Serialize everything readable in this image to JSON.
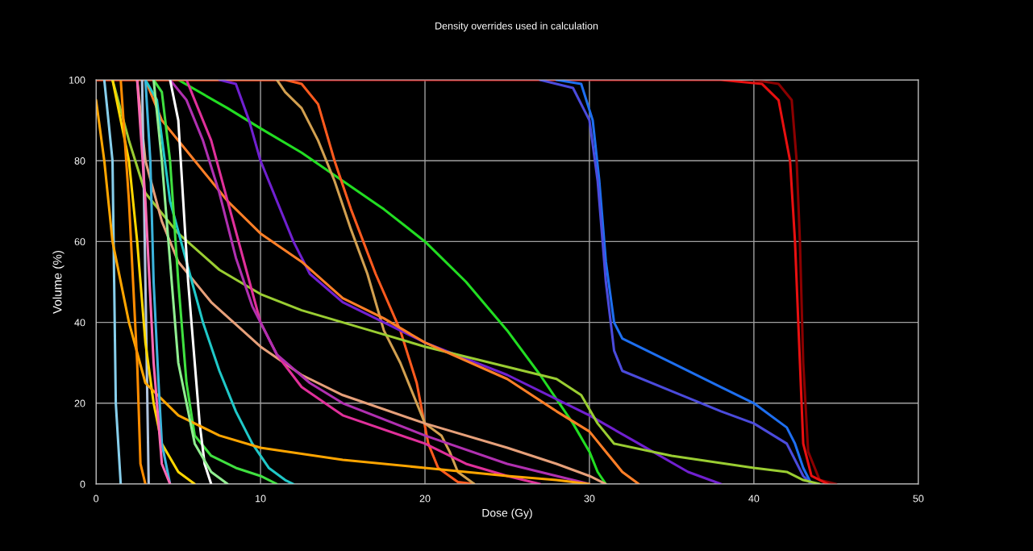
{
  "chart_data": {
    "type": "line",
    "title": "Density overrides used in calculation",
    "xlabel": "Dose (Gy)",
    "ylabel": "Volume (%)",
    "xlim": [
      0,
      50
    ],
    "ylim": [
      0,
      100
    ],
    "xticks": [
      0,
      10,
      20,
      30,
      40,
      50
    ],
    "yticks": [
      0,
      20,
      40,
      60,
      80,
      100
    ],
    "grid": true,
    "series": [
      {
        "color": "#8b0000",
        "x": [
          40,
          41.5,
          42.3,
          42.6,
          42.8,
          43,
          43.3,
          44,
          45
        ],
        "values": [
          100,
          99,
          95,
          80,
          60,
          30,
          8,
          1,
          0
        ]
      },
      {
        "color": "#e81010",
        "x": [
          0,
          38,
          40.5,
          41.5,
          42.2,
          42.5,
          42.8,
          43.0,
          43.5,
          44.5
        ],
        "values": [
          100,
          100,
          99,
          95,
          80,
          60,
          30,
          10,
          2,
          0
        ]
      },
      {
        "color": "#1e6ff0",
        "x": [
          28,
          29.5,
          30.2,
          30.6,
          31.0,
          31.5,
          32,
          35,
          38,
          40,
          42,
          42.5,
          43,
          43.5
        ],
        "values": [
          100,
          99,
          90,
          75,
          55,
          40,
          36,
          30,
          24,
          20,
          14,
          10,
          4,
          0
        ]
      },
      {
        "color": "#4b4bdc",
        "x": [
          27,
          29,
          30,
          30.5,
          31,
          31.5,
          32,
          35,
          38,
          40,
          42,
          42.5,
          43,
          43.5
        ],
        "values": [
          100,
          98,
          90,
          75,
          50,
          33,
          28,
          23,
          18,
          15,
          10,
          6,
          2,
          0
        ]
      },
      {
        "color": "#22dd22",
        "x": [
          5,
          8,
          10,
          12.5,
          15,
          17.5,
          20,
          22.5,
          25,
          27,
          29,
          30,
          30.5,
          31
        ],
        "values": [
          100,
          93,
          88,
          82,
          75,
          68,
          60,
          50,
          38,
          27,
          15,
          8,
          3,
          0
        ]
      },
      {
        "color": "#ff5a1e",
        "x": [
          0,
          11.5,
          12.5,
          13.5,
          14.5,
          15.5,
          17,
          18.5,
          19.5,
          20.2,
          20.8,
          22,
          23
        ],
        "values": [
          100,
          100,
          99,
          94,
          80,
          68,
          52,
          38,
          25,
          10,
          4,
          0.5,
          0
        ]
      },
      {
        "color": "#d2a050",
        "x": [
          11,
          11.5,
          12.5,
          13.5,
          14.5,
          15.5,
          16.5,
          17.5,
          18.5,
          19.5,
          20,
          21,
          21.5,
          22,
          23
        ],
        "values": [
          100,
          97,
          93,
          85,
          75,
          63,
          52,
          38,
          30,
          20,
          15,
          12,
          8,
          3,
          0
        ]
      },
      {
        "color": "#7020d0",
        "x": [
          7.5,
          8.5,
          9.3,
          10,
          11,
          12,
          13,
          15,
          17.5,
          20,
          25,
          30,
          33,
          36,
          38
        ],
        "values": [
          100,
          99,
          90,
          80,
          70,
          60,
          52,
          45,
          40,
          35,
          27,
          17,
          10,
          3,
          0
        ]
      },
      {
        "color": "#9acd32",
        "x": [
          1,
          2,
          3,
          5,
          7.5,
          10,
          12.5,
          15,
          17.5,
          20,
          25,
          28,
          29.5,
          30.5,
          31.5,
          35,
          40,
          42,
          43,
          44
        ],
        "values": [
          100,
          85,
          72,
          62,
          53,
          47,
          43,
          40,
          37,
          34,
          29,
          26,
          22,
          15,
          10,
          7,
          4,
          3,
          1,
          0
        ]
      },
      {
        "color": "#ff7f27",
        "x": [
          3,
          4,
          6,
          8,
          10,
          12.5,
          15,
          17.5,
          20,
          25,
          28,
          30,
          31,
          32,
          33
        ],
        "values": [
          100,
          90,
          80,
          70,
          62,
          55,
          46,
          41,
          35,
          26,
          18,
          13,
          8,
          3,
          0
        ]
      },
      {
        "color": "#e6a07a",
        "x": [
          2.5,
          3,
          4,
          5,
          7,
          10,
          12.5,
          15,
          20,
          25,
          28,
          30,
          31
        ],
        "values": [
          100,
          80,
          65,
          55,
          45,
          34,
          27,
          22,
          15,
          9,
          5,
          2,
          0
        ]
      },
      {
        "color": "#e0309a",
        "x": [
          5.5,
          6,
          7,
          8,
          9,
          10,
          11,
          12.5,
          15,
          20,
          22.5,
          25,
          27
        ],
        "values": [
          100,
          95,
          85,
          70,
          55,
          40,
          32,
          24,
          17,
          10,
          5,
          2,
          0
        ]
      },
      {
        "color": "#b030b0",
        "x": [
          4.5,
          5.5,
          6.5,
          7.5,
          8.5,
          9.5,
          11,
          13,
          15,
          20,
          25,
          28,
          30
        ],
        "values": [
          100,
          95,
          85,
          72,
          56,
          44,
          32,
          25,
          20,
          12,
          5,
          2,
          0
        ]
      },
      {
        "color": "#20c8c8",
        "x": [
          3,
          3.7,
          4.5,
          5.5,
          6.5,
          7.5,
          8.5,
          9.5,
          10.5,
          11.5,
          12
        ],
        "values": [
          100,
          95,
          70,
          55,
          40,
          28,
          18,
          10,
          4,
          1,
          0
        ]
      },
      {
        "color": "#40e040",
        "x": [
          3.5,
          4,
          4.5,
          5,
          5.5,
          6,
          7,
          8.5,
          10,
          11
        ],
        "values": [
          100,
          97,
          80,
          50,
          25,
          12,
          7,
          4,
          2,
          0
        ]
      },
      {
        "color": "#ffffff",
        "x": [
          4.5,
          5,
          5.3,
          5.6,
          6,
          6.3,
          6.6,
          7
        ],
        "values": [
          100,
          90,
          70,
          50,
          30,
          15,
          5,
          0
        ]
      },
      {
        "color": "#87ceeb",
        "x": [
          0.5,
          1,
          1.1,
          1.2,
          1.5
        ],
        "values": [
          100,
          80,
          50,
          20,
          0
        ]
      },
      {
        "color": "#b0c4de",
        "x": [
          2.8,
          3,
          3.2
        ],
        "values": [
          100,
          50,
          0
        ]
      },
      {
        "color": "#ffd700",
        "x": [
          1,
          2,
          2.5,
          3,
          3.5,
          4,
          5,
          6
        ],
        "values": [
          100,
          80,
          60,
          35,
          20,
          10,
          3,
          0
        ]
      },
      {
        "color": "#ffa500",
        "x": [
          0,
          0.5,
          1,
          2,
          3,
          5,
          7.5,
          10,
          15,
          20,
          25,
          28,
          30
        ],
        "values": [
          95,
          80,
          60,
          40,
          25,
          17,
          12,
          9,
          6,
          4,
          2,
          1,
          0
        ]
      },
      {
        "color": "#ff8c00",
        "x": [
          1.5,
          2,
          2.5,
          2.7,
          3
        ],
        "values": [
          100,
          70,
          30,
          5,
          0
        ]
      },
      {
        "color": "#3cb4dc",
        "x": [
          3,
          3.3,
          3.5,
          3.8,
          4,
          4.5
        ],
        "values": [
          100,
          80,
          50,
          25,
          10,
          0
        ]
      },
      {
        "color": "#90ee90",
        "x": [
          3.5,
          4,
          4.5,
          5,
          6,
          7,
          8
        ],
        "values": [
          100,
          80,
          55,
          30,
          10,
          3,
          0
        ]
      },
      {
        "color": "#ff69b4",
        "x": [
          2.5,
          3,
          3.5,
          4,
          4.5
        ],
        "values": [
          100,
          70,
          30,
          5,
          0
        ]
      }
    ]
  }
}
